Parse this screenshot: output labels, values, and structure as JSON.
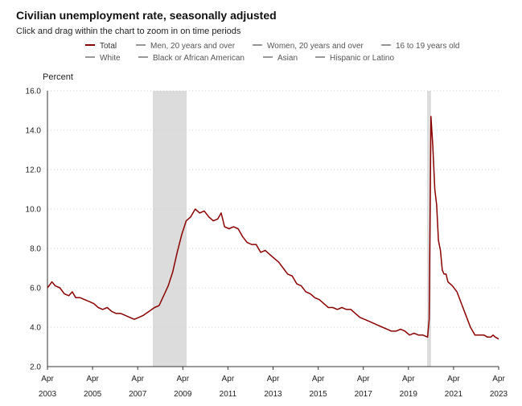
{
  "header": {
    "title": "Civilian unemployment rate, seasonally adjusted",
    "subtitle": "Click and drag within the chart to zoom in on time periods"
  },
  "legend": [
    {
      "label": "Total",
      "color": "#8b0000",
      "active": true
    },
    {
      "label": "Men, 20 years and over",
      "color": "#999999",
      "active": false
    },
    {
      "label": "Women, 20 years and over",
      "color": "#999999",
      "active": false
    },
    {
      "label": "16 to 19 years old",
      "color": "#999999",
      "active": false
    },
    {
      "label": "White",
      "color": "#999999",
      "active": false
    },
    {
      "label": "Black or African American",
      "color": "#999999",
      "active": false
    },
    {
      "label": "Asian",
      "color": "#999999",
      "active": false
    },
    {
      "label": "Hispanic or Latino",
      "color": "#999999",
      "active": false
    }
  ],
  "chart_data": {
    "type": "line",
    "ylabel": "Percent",
    "ylim": [
      2.0,
      16.0
    ],
    "yticks": [
      "2.0",
      "4.0",
      "6.0",
      "8.0",
      "10.0",
      "12.0",
      "14.0",
      "16.0"
    ],
    "xlim": [
      2003.25,
      2023.25
    ],
    "xticks": [
      {
        "month": "Apr",
        "year": "2003",
        "x": 2003.25
      },
      {
        "month": "Apr",
        "year": "2005",
        "x": 2005.25
      },
      {
        "month": "Apr",
        "year": "2007",
        "x": 2007.25
      },
      {
        "month": "Apr",
        "year": "2009",
        "x": 2009.25
      },
      {
        "month": "Apr",
        "year": "2011",
        "x": 2011.25
      },
      {
        "month": "Apr",
        "year": "2013",
        "x": 2013.25
      },
      {
        "month": "Apr",
        "year": "2015",
        "x": 2015.25
      },
      {
        "month": "Apr",
        "year": "2017",
        "x": 2017.25
      },
      {
        "month": "Apr",
        "year": "2019",
        "x": 2019.25
      },
      {
        "month": "Apr",
        "year": "2021",
        "x": 2021.25
      },
      {
        "month": "Apr",
        "year": "2023",
        "x": 2023.25
      }
    ],
    "grid": "horizontal dotted",
    "recessions": [
      {
        "start": 2007.92,
        "end": 2009.42
      },
      {
        "start": 2020.08,
        "end": 2020.25
      }
    ],
    "series": [
      {
        "name": "Total",
        "color": "#8b0000",
        "points": [
          [
            2003.25,
            6.0
          ],
          [
            2003.45,
            6.3
          ],
          [
            2003.6,
            6.1
          ],
          [
            2003.8,
            6.0
          ],
          [
            2004.0,
            5.7
          ],
          [
            2004.2,
            5.6
          ],
          [
            2004.35,
            5.8
          ],
          [
            2004.5,
            5.5
          ],
          [
            2004.7,
            5.5
          ],
          [
            2004.9,
            5.4
          ],
          [
            2005.1,
            5.3
          ],
          [
            2005.3,
            5.2
          ],
          [
            2005.5,
            5.0
          ],
          [
            2005.7,
            4.9
          ],
          [
            2005.9,
            5.0
          ],
          [
            2006.1,
            4.8
          ],
          [
            2006.3,
            4.7
          ],
          [
            2006.5,
            4.7
          ],
          [
            2006.7,
            4.6
          ],
          [
            2006.9,
            4.5
          ],
          [
            2007.1,
            4.4
          ],
          [
            2007.3,
            4.5
          ],
          [
            2007.5,
            4.6
          ],
          [
            2007.75,
            4.8
          ],
          [
            2008.0,
            5.0
          ],
          [
            2008.2,
            5.1
          ],
          [
            2008.4,
            5.6
          ],
          [
            2008.6,
            6.1
          ],
          [
            2008.8,
            6.8
          ],
          [
            2009.0,
            7.8
          ],
          [
            2009.2,
            8.7
          ],
          [
            2009.4,
            9.4
          ],
          [
            2009.6,
            9.6
          ],
          [
            2009.8,
            10.0
          ],
          [
            2010.0,
            9.8
          ],
          [
            2010.2,
            9.9
          ],
          [
            2010.4,
            9.6
          ],
          [
            2010.6,
            9.4
          ],
          [
            2010.8,
            9.5
          ],
          [
            2010.95,
            9.8
          ],
          [
            2011.1,
            9.1
          ],
          [
            2011.3,
            9.0
          ],
          [
            2011.5,
            9.1
          ],
          [
            2011.7,
            9.0
          ],
          [
            2011.9,
            8.6
          ],
          [
            2012.1,
            8.3
          ],
          [
            2012.3,
            8.2
          ],
          [
            2012.5,
            8.2
          ],
          [
            2012.7,
            7.8
          ],
          [
            2012.9,
            7.9
          ],
          [
            2013.1,
            7.7
          ],
          [
            2013.3,
            7.5
          ],
          [
            2013.5,
            7.3
          ],
          [
            2013.7,
            7.0
          ],
          [
            2013.9,
            6.7
          ],
          [
            2014.1,
            6.6
          ],
          [
            2014.3,
            6.2
          ],
          [
            2014.5,
            6.1
          ],
          [
            2014.7,
            5.8
          ],
          [
            2014.9,
            5.7
          ],
          [
            2015.1,
            5.5
          ],
          [
            2015.3,
            5.4
          ],
          [
            2015.5,
            5.2
          ],
          [
            2015.7,
            5.0
          ],
          [
            2015.9,
            5.0
          ],
          [
            2016.1,
            4.9
          ],
          [
            2016.3,
            5.0
          ],
          [
            2016.5,
            4.9
          ],
          [
            2016.7,
            4.9
          ],
          [
            2016.9,
            4.7
          ],
          [
            2017.1,
            4.5
          ],
          [
            2017.3,
            4.4
          ],
          [
            2017.5,
            4.3
          ],
          [
            2017.7,
            4.2
          ],
          [
            2017.9,
            4.1
          ],
          [
            2018.1,
            4.0
          ],
          [
            2018.3,
            3.9
          ],
          [
            2018.5,
            3.8
          ],
          [
            2018.7,
            3.8
          ],
          [
            2018.9,
            3.9
          ],
          [
            2019.1,
            3.8
          ],
          [
            2019.3,
            3.6
          ],
          [
            2019.5,
            3.7
          ],
          [
            2019.7,
            3.6
          ],
          [
            2019.9,
            3.6
          ],
          [
            2020.1,
            3.5
          ],
          [
            2020.17,
            4.4
          ],
          [
            2020.25,
            14.7
          ],
          [
            2020.33,
            13.2
          ],
          [
            2020.42,
            11.0
          ],
          [
            2020.5,
            10.2
          ],
          [
            2020.58,
            8.4
          ],
          [
            2020.67,
            7.9
          ],
          [
            2020.75,
            6.9
          ],
          [
            2020.83,
            6.7
          ],
          [
            2020.92,
            6.7
          ],
          [
            2021.0,
            6.3
          ],
          [
            2021.2,
            6.1
          ],
          [
            2021.4,
            5.8
          ],
          [
            2021.6,
            5.2
          ],
          [
            2021.8,
            4.6
          ],
          [
            2022.0,
            4.0
          ],
          [
            2022.2,
            3.6
          ],
          [
            2022.4,
            3.6
          ],
          [
            2022.6,
            3.6
          ],
          [
            2022.75,
            3.5
          ],
          [
            2022.9,
            3.5
          ],
          [
            2023.0,
            3.6
          ],
          [
            2023.1,
            3.5
          ],
          [
            2023.25,
            3.4
          ]
        ]
      }
    ]
  }
}
